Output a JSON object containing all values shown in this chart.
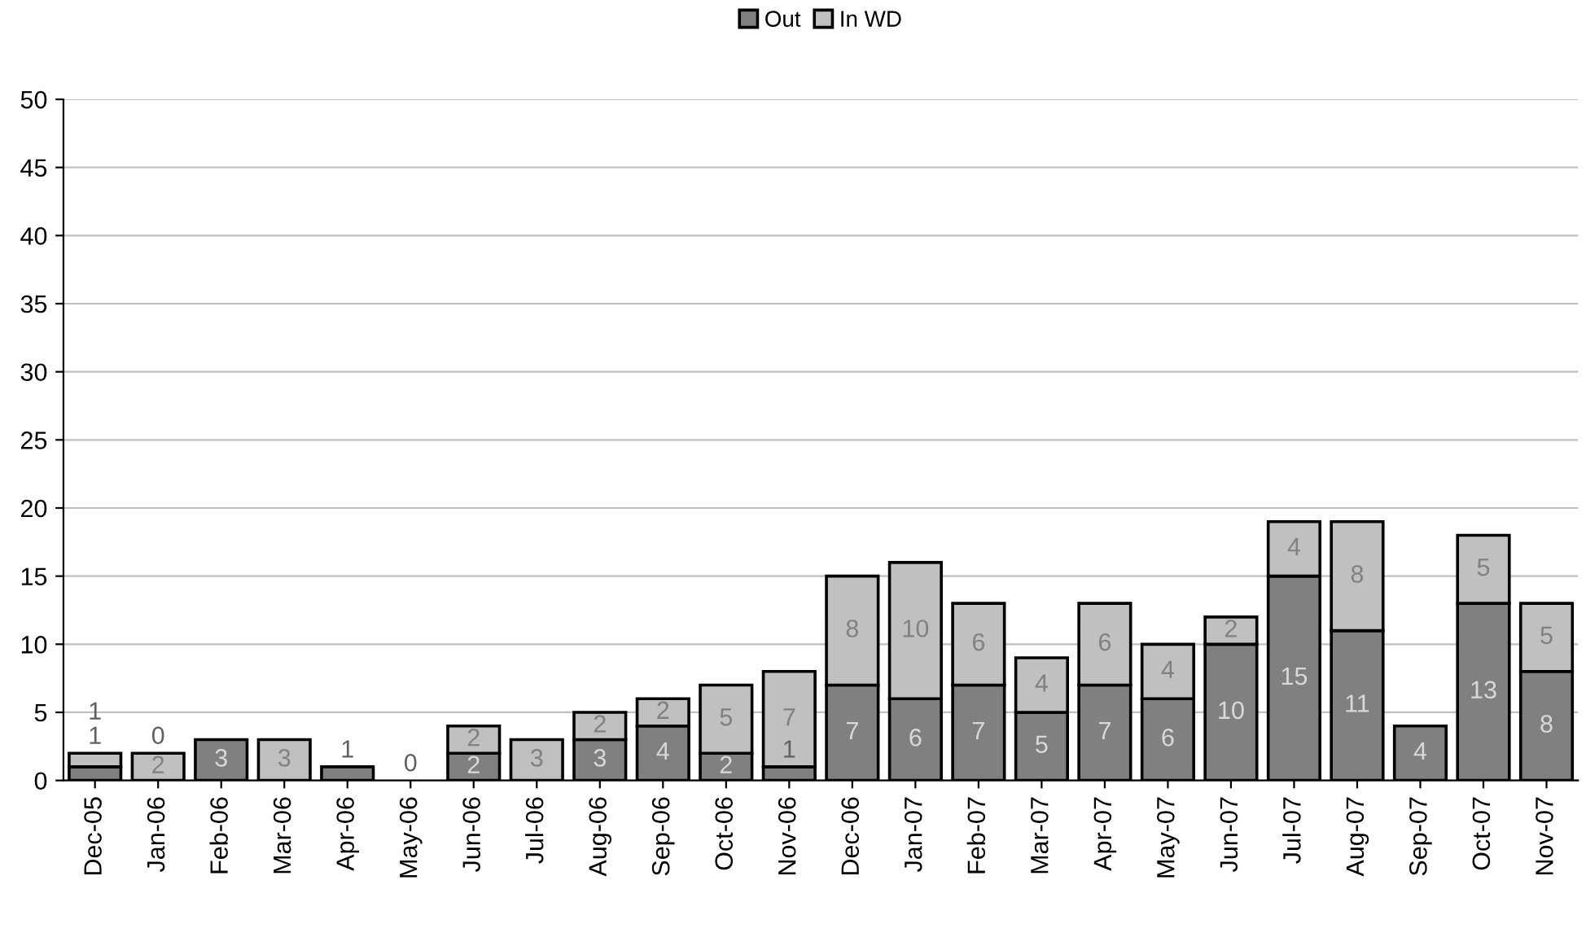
{
  "chart_data": {
    "type": "bar",
    "stacked": true,
    "categories": [
      "Dec-05",
      "Jan-06",
      "Feb-06",
      "Mar-06",
      "Apr-06",
      "May-06",
      "Jun-06",
      "Jul-06",
      "Aug-06",
      "Sep-06",
      "Oct-06",
      "Nov-06",
      "Dec-06",
      "Jan-07",
      "Feb-07",
      "Mar-07",
      "Apr-07",
      "May-07",
      "Jun-07",
      "Jul-07",
      "Aug-07",
      "Sep-07",
      "Oct-07",
      "Nov-07"
    ],
    "series": [
      {
        "name": "Out",
        "color": "#808080",
        "values": [
          1,
          0,
          3,
          0,
          1,
          0,
          2,
          0,
          3,
          4,
          2,
          1,
          7,
          6,
          7,
          5,
          7,
          6,
          10,
          15,
          11,
          4,
          13,
          8
        ],
        "value_labels": [
          "1",
          "0",
          "3",
          null,
          "1",
          "0",
          "2",
          null,
          "3",
          "4",
          "2",
          "1",
          "7",
          "6",
          "7",
          "5",
          "7",
          "6",
          "10",
          "15",
          "11",
          "4",
          "13",
          "8"
        ]
      },
      {
        "name": "In WD",
        "color": "#c0c0c0",
        "values": [
          1,
          2,
          0,
          3,
          0,
          0,
          2,
          3,
          2,
          2,
          5,
          7,
          8,
          10,
          6,
          4,
          6,
          4,
          2,
          4,
          8,
          0,
          5,
          5
        ],
        "value_labels": [
          "1",
          "2",
          null,
          "3",
          null,
          null,
          "2",
          "3",
          "2",
          "2",
          "5",
          "7",
          "8",
          "10",
          "6",
          "4",
          "6",
          "4",
          "2",
          "4",
          "8",
          null,
          "5",
          "5"
        ]
      }
    ],
    "ylim": [
      0,
      50
    ],
    "yticks": [
      0,
      5,
      10,
      15,
      20,
      25,
      30,
      35,
      40,
      45,
      50
    ],
    "grid": "y",
    "legend": "top"
  }
}
